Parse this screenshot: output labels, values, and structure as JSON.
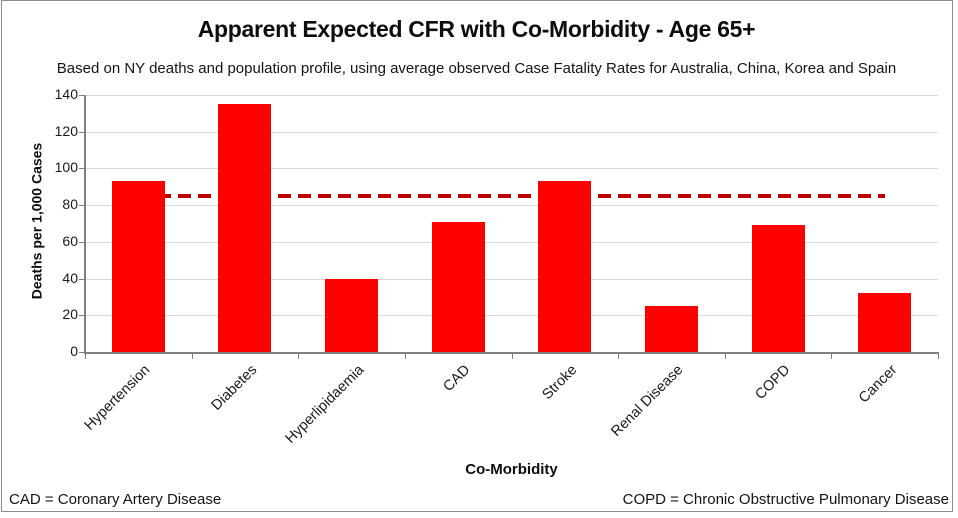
{
  "chart_data": {
    "type": "bar",
    "title": "Apparent Expected CFR with Co-Morbidity - Age 65+",
    "subtitle": "Based on NY deaths and population profile, using average observed Case Fatality Rates for Australia, China, Korea and Spain",
    "xlabel": "Co-Morbidity",
    "ylabel": "Deaths per 1,000 Cases",
    "categories": [
      "Hypertension",
      "Diabetes",
      "Hyperlipidaemia",
      "CAD",
      "Stroke",
      "Renal Disease",
      "COPD",
      "Cancer"
    ],
    "values": [
      93,
      135,
      40,
      71,
      93,
      25,
      69,
      32
    ],
    "ylim": [
      0,
      140
    ],
    "yticks": [
      0,
      20,
      40,
      60,
      80,
      100,
      120,
      140
    ],
    "grid": true,
    "legend": "none",
    "bar_color": "#FF0000",
    "reference_line": {
      "value": 85,
      "style": "dashed",
      "color": "#C00000"
    }
  },
  "footnotes": {
    "left": "CAD = Coronary Artery Disease",
    "right": "COPD = Chronic Obstructive Pulmonary Disease"
  }
}
